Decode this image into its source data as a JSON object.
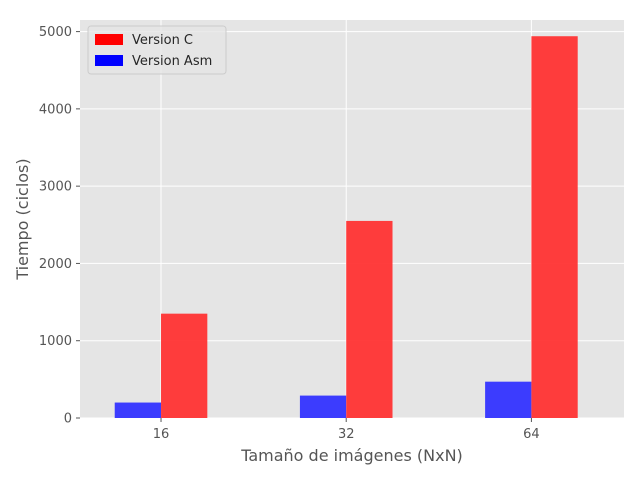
{
  "chart_data": {
    "type": "bar",
    "title": "",
    "xlabel": "Tamaño de imágenes (NxN)",
    "ylabel": "Tiempo (ciclos)",
    "categories": [
      "16",
      "32",
      "64"
    ],
    "series": [
      {
        "name": "Version Asm",
        "values": [
          200,
          290,
          470
        ],
        "color": "#3333ff"
      },
      {
        "name": "Version C",
        "values": [
          1350,
          2550,
          4940
        ],
        "color": "#ff3333"
      }
    ],
    "legend_order": [
      "Version C",
      "Version Asm"
    ],
    "legend_colors": {
      "Version C": "#ff0000",
      "Version Asm": "#0000ff"
    },
    "ylim": [
      0,
      5150
    ],
    "yticks": [
      0,
      1000,
      2000,
      3000,
      4000,
      5000
    ],
    "grid": true,
    "legend_position": "top-left",
    "background": "#e5e5e5"
  }
}
